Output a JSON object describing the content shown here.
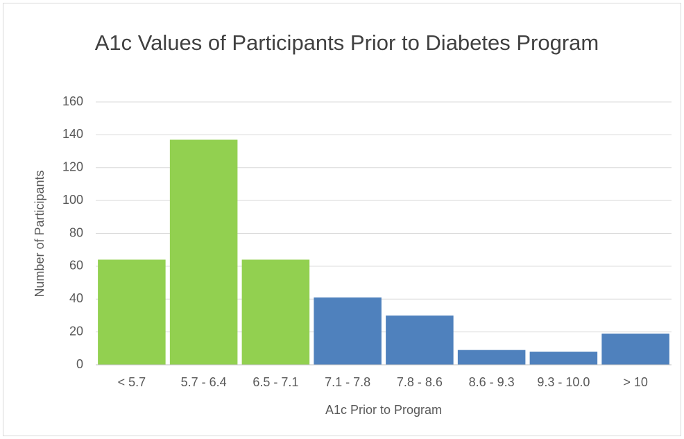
{
  "chart_data": {
    "type": "bar",
    "title": "A1c Values of Participants Prior to Diabetes Program",
    "x_label": "A1c Prior to Program",
    "y_label": "Number of Participants",
    "categories": [
      "< 5.7",
      "5.7 - 6.4",
      "6.5 - 7.1",
      "7.1 - 7.8",
      "7.8 - 8.6",
      "8.6 - 9.3",
      "9.3 - 10.0",
      "> 10"
    ],
    "values": [
      64,
      137,
      64,
      41,
      30,
      9,
      8,
      19
    ],
    "colors": [
      "#92d050",
      "#92d050",
      "#92d050",
      "#4f81bd",
      "#4f81bd",
      "#4f81bd",
      "#4f81bd",
      "#4f81bd"
    ],
    "ylim": [
      0,
      160
    ],
    "yticks": [
      0,
      20,
      40,
      60,
      80,
      100,
      120,
      140,
      160
    ],
    "grid": true
  }
}
